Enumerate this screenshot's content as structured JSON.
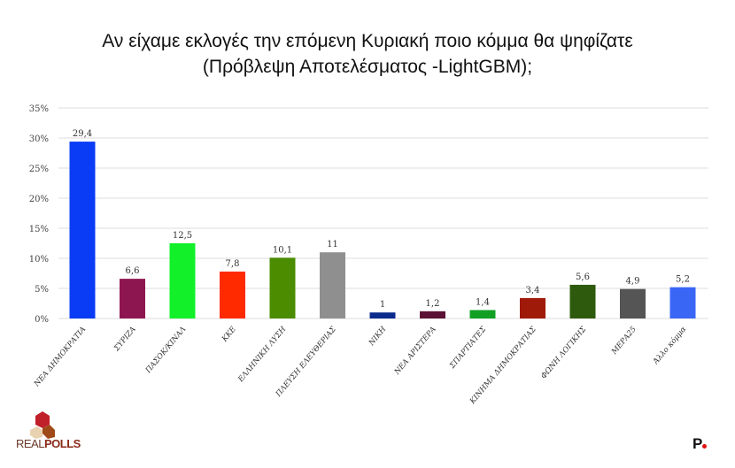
{
  "title_line1": "Αν είχαμε εκλογές την επόμενη Κυριακή ποιο κόμμα θα ψηφίζατε",
  "title_line2": "(Πρόβλεψη Αποτελέσματος -LightGBM);",
  "logo": {
    "left": "REAL",
    "right": "POLLS"
  },
  "corner_mark": "P",
  "chart_data": {
    "type": "bar",
    "title": "Αν είχαμε εκλογές την επόμενη Κυριακή ποιο κόμμα θα ψηφίζατε (Πρόβλεψη Αποτελέσματος -LightGBM);",
    "categories": [
      "ΝΕΑ ΔΗΜΟΚΡΑΤΙΑ",
      "ΣΥΡΙΖΑ",
      "ΠΑΣΟΚ/ΚΙΝΑΛ",
      "ΚΚΕ",
      "ΕΛΛΗΝΙΚΗ ΛΥΣΗ",
      "ΠΛΕΥΣΗ ΕΛΕΥΘΕΡΙΑΣ",
      "ΝΙΚΗ",
      "ΝΕΑ ΑΡΙΣΤΕΡΑ",
      "ΣΠΑΡΤΙΑΤΕΣ",
      "ΚΙΝΗΜΑ ΔΗΜΟΚΡΑΤΙΑΣ",
      "ΦΩΝΗ ΛΟΓΙΚΗΣ",
      "ΜΕΡΑ25",
      "Άλλο κόμμα"
    ],
    "values": [
      29.4,
      6.6,
      12.5,
      7.8,
      10.1,
      11,
      1,
      1.2,
      1.4,
      3.4,
      5.6,
      4.9,
      5.2
    ],
    "data_labels": [
      "29,4",
      "6,6",
      "12,5",
      "7,8",
      "10,1",
      "11",
      "1",
      "1,2",
      "1,4",
      "3,4",
      "5,6",
      "4,9",
      "5,2"
    ],
    "colors": [
      "#0a3cf5",
      "#8e1650",
      "#12f02a",
      "#ff2a00",
      "#4b8c00",
      "#8f8f8f",
      "#0a2a8c",
      "#5c1034",
      "#12a024",
      "#a01a0a",
      "#2d5a0c",
      "#555555",
      "#3a66f5"
    ],
    "yticks": [
      "0%",
      "5%",
      "10%",
      "15%",
      "20%",
      "25%",
      "30%",
      "35%"
    ],
    "ylim": [
      0,
      35
    ],
    "grid": true,
    "xlabel": "",
    "ylabel": ""
  }
}
